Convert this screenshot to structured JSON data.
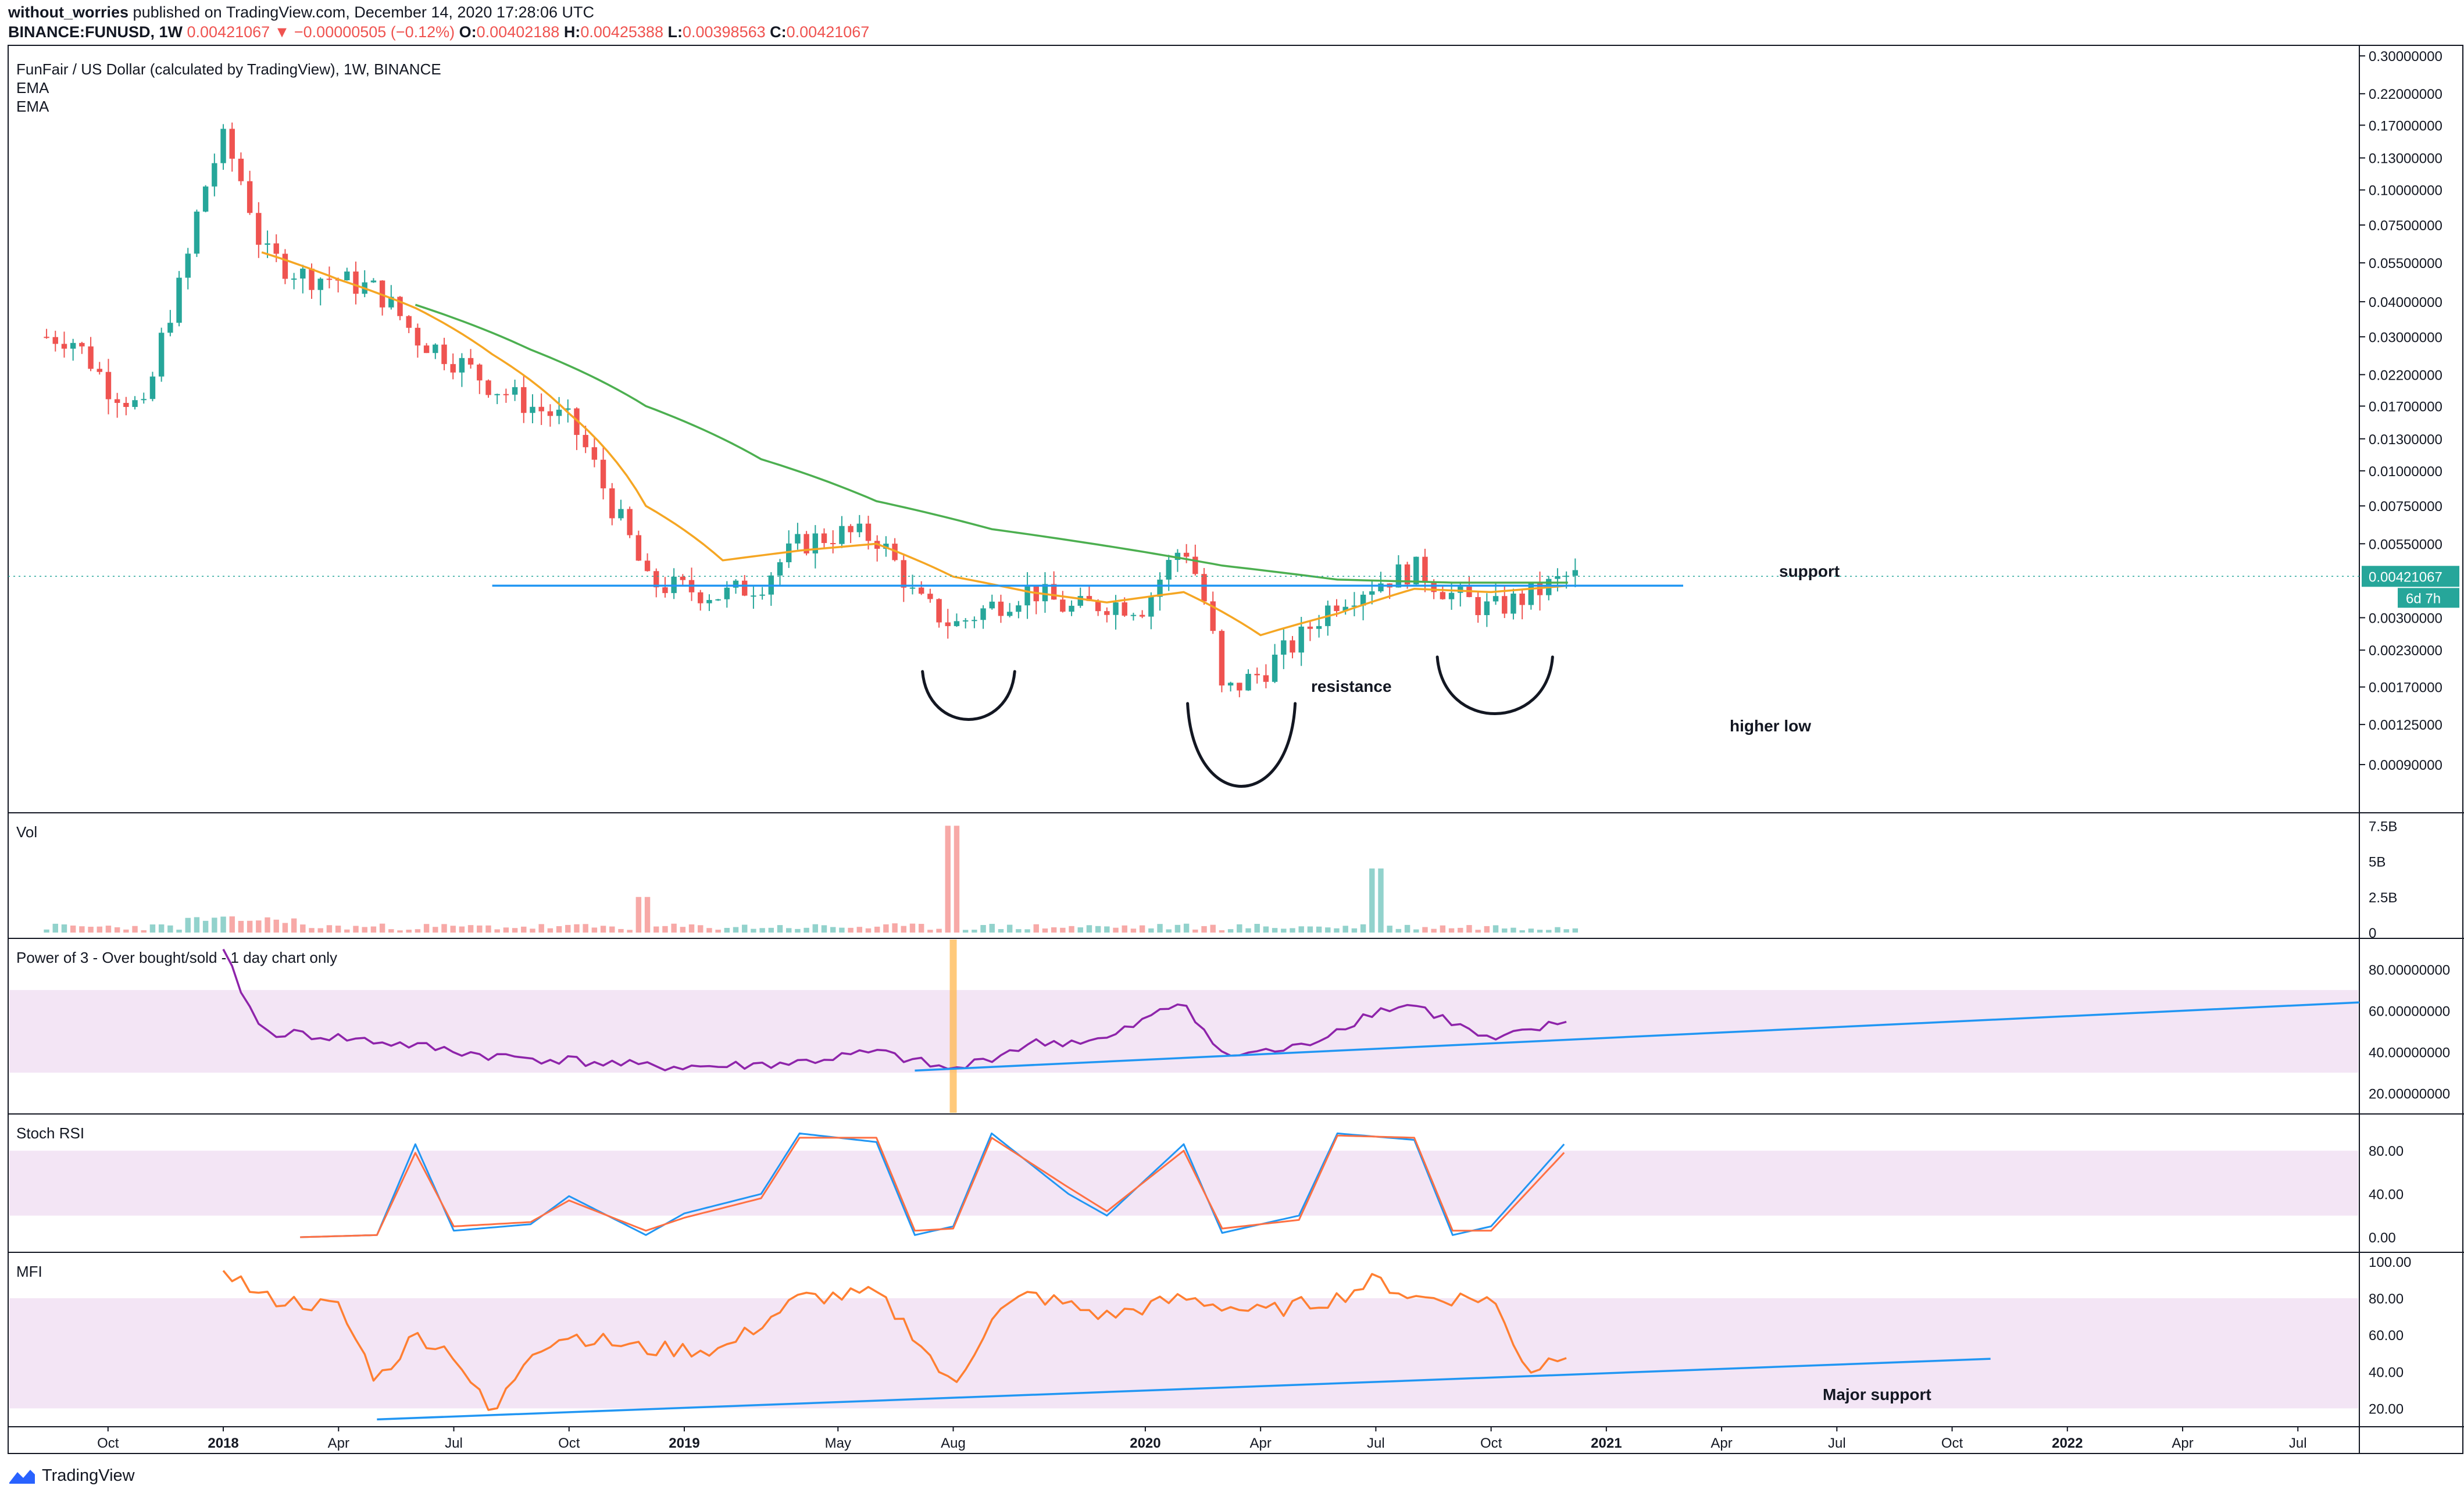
{
  "header": {
    "author": "without_worries",
    "published_text": "published on TradingView.com, December 14, 2020 17:28:06 UTC",
    "symbol": "BINANCE:FUNUSD, 1W",
    "change": "0.00421067 ▼ −0.00000505 (−0.12%)",
    "o_label": "O:",
    "o_value": "0.00402188",
    "h_label": "H:",
    "h_value": "0.00425388",
    "l_label": "L:",
    "l_value": "0.00398563",
    "c_label": "C:",
    "c_value": "0.00421067"
  },
  "footer": {
    "brand": "TradingView"
  },
  "colors": {
    "up": "#26a69a",
    "down": "#ef5350",
    "ema_fast": "#f5a623",
    "ema_slow": "#4caf50",
    "trend": "#2196f3",
    "power3": "#8e24aa",
    "stoch_k": "#2196f3",
    "stoch_d": "#ff7043",
    "mfi": "#ff7f32",
    "band": "#f3e5f5",
    "highlight": "#ffb74d",
    "price_badge": "#26a69a"
  },
  "chart_data": [
    {
      "type": "candlestick",
      "title": "FunFair / US Dollar (calculated by TradingView), 1W, BINANCE",
      "legend": [
        "EMA",
        "EMA"
      ],
      "y_scale": "log",
      "y_ticks": [
        "0.30000000",
        "0.22000000",
        "0.17000000",
        "0.13000000",
        "0.10000000",
        "0.07500000",
        "0.05500000",
        "0.04000000",
        "0.03000000",
        "0.02200000",
        "0.01700000",
        "0.01300000",
        "0.01000000",
        "0.00750000",
        "0.00550000",
        "0.00300000",
        "0.00230000",
        "0.00170000",
        "0.00125000",
        "0.00090000"
      ],
      "last_price": "0.00421067",
      "countdown": "6d 7h",
      "x_ticks": [
        "Oct",
        "2018",
        "Apr",
        "Jul",
        "Oct",
        "2019",
        "May",
        "Aug",
        "2020",
        "Apr",
        "Jul",
        "Oct",
        "2021",
        "Apr",
        "Jul",
        "Oct",
        "2022",
        "Apr",
        "Jul"
      ],
      "x_range": [
        "2017-07",
        "2022-08"
      ],
      "series": [
        {
          "name": "FUNUSD close (weekly, approx.)",
          "x": [
            "2017-09",
            "2017-10",
            "2017-11",
            "2017-12",
            "2018-01",
            "2018-02",
            "2018-03",
            "2018-04",
            "2018-05",
            "2018-06",
            "2018-07",
            "2018-08",
            "2018-09",
            "2018-10",
            "2018-11",
            "2018-12",
            "2019-01",
            "2019-02",
            "2019-03",
            "2019-04",
            "2019-05",
            "2019-06",
            "2019-07",
            "2019-08",
            "2019-09",
            "2019-10",
            "2019-11",
            "2019-12",
            "2020-01",
            "2020-02",
            "2020-03",
            "2020-04",
            "2020-05",
            "2020-06",
            "2020-07",
            "2020-08",
            "2020-09",
            "2020-10",
            "2020-11",
            "2020-12"
          ],
          "values": [
            0.03,
            0.02,
            0.016,
            0.05,
            0.15,
            0.06,
            0.05,
            0.048,
            0.044,
            0.03,
            0.025,
            0.02,
            0.017,
            0.015,
            0.008,
            0.004,
            0.0038,
            0.0036,
            0.004,
            0.0055,
            0.006,
            0.0058,
            0.0035,
            0.0028,
            0.0033,
            0.0038,
            0.0032,
            0.0034,
            0.0033,
            0.0055,
            0.0016,
            0.0019,
            0.0025,
            0.0035,
            0.004,
            0.0045,
            0.0036,
            0.0032,
            0.0036,
            0.0042
          ]
        },
        {
          "name": "EMA (fast)",
          "x": [
            "2018-02",
            "2018-04",
            "2018-06",
            "2018-08",
            "2018-10",
            "2018-12",
            "2019-02",
            "2019-04",
            "2019-06",
            "2019-08",
            "2019-10",
            "2019-12",
            "2020-02",
            "2020-04",
            "2020-06",
            "2020-08",
            "2020-10",
            "2020-12"
          ],
          "values": [
            0.06,
            0.048,
            0.038,
            0.026,
            0.016,
            0.0075,
            0.0048,
            0.0052,
            0.0055,
            0.0042,
            0.0037,
            0.0034,
            0.0037,
            0.0026,
            0.0031,
            0.0038,
            0.0037,
            0.0039
          ]
        },
        {
          "name": "EMA (slow)",
          "x": [
            "2018-06",
            "2018-09",
            "2018-12",
            "2019-03",
            "2019-06",
            "2019-09",
            "2019-12",
            "2020-03",
            "2020-06",
            "2020-09",
            "2020-12"
          ],
          "values": [
            0.039,
            0.027,
            0.017,
            0.011,
            0.0078,
            0.0062,
            0.0054,
            0.0046,
            0.0041,
            0.004,
            0.004
          ]
        }
      ],
      "annotations": [
        "support",
        "resistance",
        "higher low"
      ],
      "horizontal_line": 0.0039
    },
    {
      "type": "bar",
      "title": "Vol",
      "y_ticks": [
        "7.5B",
        "5B",
        "2.5B",
        "0"
      ],
      "peaks": [
        {
          "x": "2019-08",
          "value": 7.5,
          "unit": "B"
        },
        {
          "x": "2020-07",
          "value": 4.5,
          "unit": "B"
        },
        {
          "x": "2018-12",
          "value": 2.5,
          "unit": "B"
        }
      ]
    },
    {
      "type": "line",
      "title": "Power of 3 - Over bought/sold - 1 day chart only",
      "y_ticks": [
        "80.00000000",
        "60.00000000",
        "40.00000000",
        "20.00000000"
      ],
      "band": [
        30,
        70
      ],
      "x": [
        "2018-01",
        "2018-02",
        "2018-04",
        "2018-06",
        "2018-08",
        "2018-10",
        "2018-12",
        "2019-02",
        "2019-04",
        "2019-06",
        "2019-08",
        "2019-10",
        "2019-12",
        "2020-02",
        "2020-03",
        "2020-05",
        "2020-07",
        "2020-08",
        "2020-10",
        "2020-12"
      ],
      "values": [
        88,
        50,
        47,
        43,
        38,
        36,
        33,
        33,
        35,
        40,
        31,
        44,
        46,
        65,
        38,
        42,
        60,
        63,
        45,
        55
      ]
    },
    {
      "type": "line",
      "title": "Stoch RSI",
      "y_ticks": [
        "80.00",
        "40.00",
        "0.00"
      ],
      "band": [
        20,
        80
      ],
      "series": [
        {
          "name": "K",
          "x": [
            "2018-03",
            "2018-05",
            "2018-06",
            "2018-07",
            "2018-09",
            "2018-10",
            "2018-12",
            "2019-01",
            "2019-03",
            "2019-04",
            "2019-06",
            "2019-07",
            "2019-08",
            "2019-09",
            "2019-11",
            "2019-12",
            "2020-02",
            "2020-03",
            "2020-05",
            "2020-06",
            "2020-08",
            "2020-09",
            "2020-10",
            "2020-12"
          ],
          "values": [
            0,
            2,
            86,
            6,
            12,
            38,
            2,
            22,
            40,
            96,
            88,
            2,
            10,
            96,
            40,
            20,
            86,
            4,
            20,
            96,
            90,
            2,
            10,
            90
          ]
        },
        {
          "name": "D",
          "x": [
            "2018-03",
            "2018-05",
            "2018-06",
            "2018-07",
            "2018-09",
            "2018-10",
            "2018-12",
            "2019-01",
            "2019-03",
            "2019-04",
            "2019-06",
            "2019-07",
            "2019-08",
            "2019-09",
            "2019-11",
            "2019-12",
            "2020-02",
            "2020-03",
            "2020-05",
            "2020-06",
            "2020-08",
            "2020-09",
            "2020-10",
            "2020-12"
          ],
          "values": [
            0,
            2,
            78,
            10,
            14,
            34,
            6,
            18,
            36,
            92,
            92,
            6,
            8,
            92,
            46,
            24,
            80,
            8,
            16,
            94,
            92,
            6,
            6,
            82
          ]
        }
      ]
    },
    {
      "type": "line",
      "title": "MFI",
      "y_ticks": [
        "100.00",
        "80.00",
        "60.00",
        "40.00",
        "20.00"
      ],
      "band": [
        20,
        80
      ],
      "x": [
        "2018-01",
        "2018-02",
        "2018-04",
        "2018-05",
        "2018-06",
        "2018-07",
        "2018-08",
        "2018-09",
        "2018-10",
        "2018-12",
        "2019-02",
        "2019-04",
        "2019-06",
        "2019-07",
        "2019-08",
        "2019-09",
        "2019-10",
        "2019-12",
        "2020-02",
        "2020-04",
        "2020-06",
        "2020-07",
        "2020-08",
        "2020-10",
        "2020-11",
        "2020-12"
      ],
      "values": [
        97,
        80,
        75,
        35,
        60,
        50,
        15,
        52,
        60,
        52,
        52,
        80,
        82,
        60,
        30,
        70,
        82,
        70,
        80,
        72,
        80,
        90,
        80,
        80,
        40,
        52
      ],
      "annotation": "Major support"
    }
  ]
}
